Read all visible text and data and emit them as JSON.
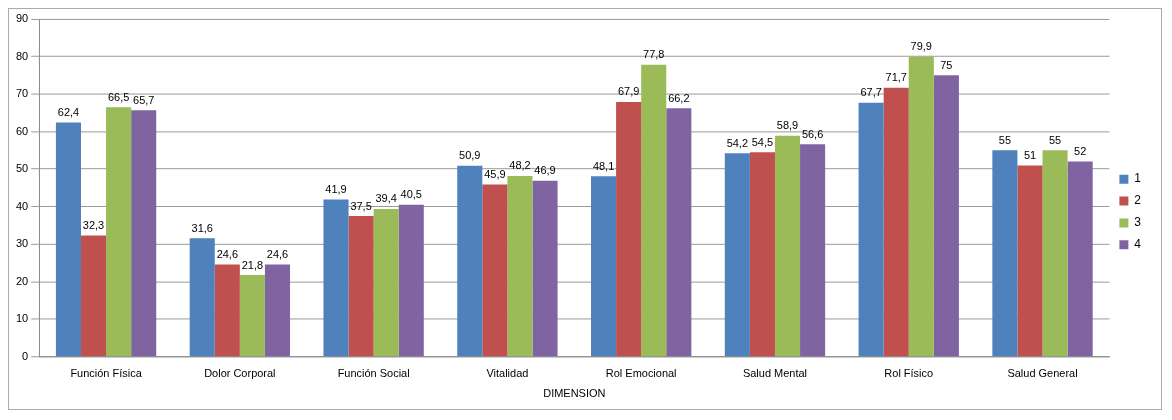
{
  "chart_data": {
    "type": "bar",
    "xlabel": "DIMENSION",
    "categories": [
      "Función Física",
      "Dolor Corporal",
      "Función Social",
      "Vitalidad",
      "Rol Emocional",
      "Salud Mental",
      "Rol Físico",
      "Salud General"
    ],
    "series": [
      {
        "name": "1",
        "color": "#4f81bd",
        "values": [
          62.4,
          31.6,
          41.9,
          50.9,
          48.1,
          54.2,
          67.7,
          55
        ],
        "value_labels": [
          "62,4",
          "31,6",
          "41,9",
          "50,9",
          "48,1",
          "54,2",
          "67,7",
          "55"
        ]
      },
      {
        "name": "2",
        "color": "#c0504d",
        "values": [
          32.3,
          24.6,
          37.5,
          45.9,
          67.9,
          54.5,
          71.7,
          51
        ],
        "value_labels": [
          "32,3",
          "24,6",
          "37,5",
          "45,9",
          "67,9",
          "54,5",
          "71,7",
          "51"
        ]
      },
      {
        "name": "3",
        "color": "#9bbb59",
        "values": [
          66.5,
          21.8,
          39.4,
          48.2,
          77.8,
          58.9,
          79.9,
          55
        ],
        "value_labels": [
          "66,5",
          "21,8",
          "39,4",
          "48,2",
          "77,8",
          "58,9",
          "79,9",
          "55"
        ]
      },
      {
        "name": "4",
        "color": "#8064a2",
        "values": [
          65.7,
          24.6,
          40.5,
          46.9,
          66.2,
          56.6,
          75,
          52
        ],
        "value_labels": [
          "65,7",
          "24,6",
          "40,5",
          "46,9",
          "66,2",
          "56,6",
          "75",
          "52"
        ]
      }
    ],
    "ylim": [
      0,
      90
    ],
    "yticks": [
      0,
      10,
      20,
      30,
      40,
      50,
      60,
      70,
      80,
      90
    ],
    "grid": "y",
    "legend": "right"
  }
}
